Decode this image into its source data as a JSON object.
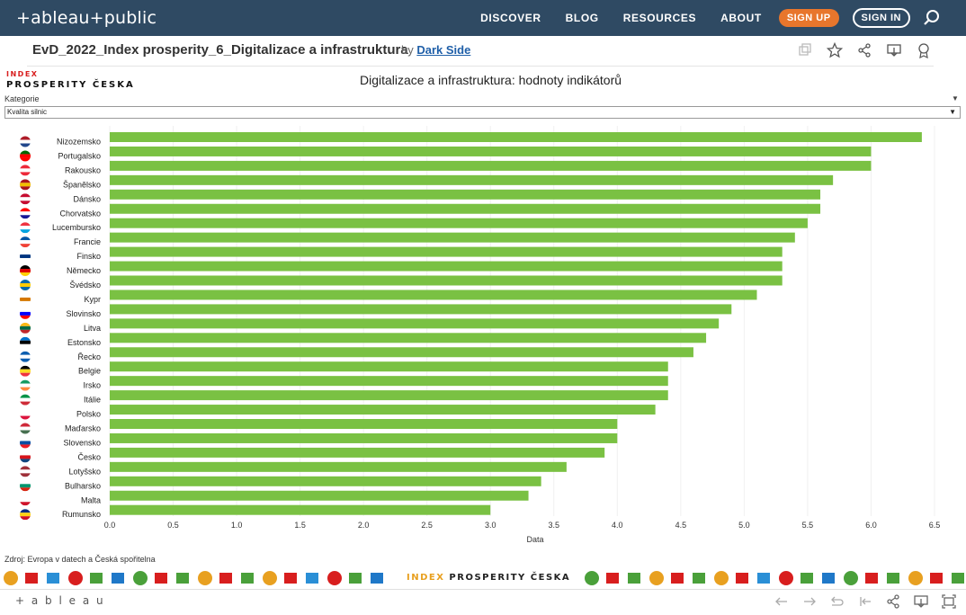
{
  "nav": {
    "logo": "+ableau+public",
    "links": [
      "DISCOVER",
      "BLOG",
      "RESOURCES",
      "ABOUT"
    ],
    "signup": "SIGN UP",
    "signin": "SIGN IN"
  },
  "viz": {
    "title": "EvD_2022_Index prosperity_6_Digitalizace a infrastruktura",
    "by": "by",
    "author": "Dark Side"
  },
  "brand": {
    "index": "INDEX",
    "main": "PROSPERITY ČESKA"
  },
  "dashboard": {
    "title": "Digitalizace a infrastruktura: hodnoty indikátorů",
    "filter_label": "Kategorie",
    "filter_value": "Kvalita silnic",
    "source": "Zdroj: Evropa v datech a Česká spořitelna"
  },
  "colors": {
    "bar": "#7ac143",
    "nav": "#2f4a63",
    "signup": "#e8762c",
    "link": "#1f5fa8"
  },
  "chart_data": {
    "type": "bar",
    "orientation": "horizontal",
    "categories": [
      "Nizozemsko",
      "Portugalsko",
      "Rakousko",
      "Španělsko",
      "Dánsko",
      "Chorvatsko",
      "Lucembursko",
      "Francie",
      "Finsko",
      "Německo",
      "Švédsko",
      "Kypr",
      "Slovinsko",
      "Litva",
      "Estonsko",
      "Řecko",
      "Belgie",
      "Irsko",
      "Itálie",
      "Polsko",
      "Maďarsko",
      "Slovensko",
      "Česko",
      "Lotyšsko",
      "Bulharsko",
      "Malta",
      "Rumunsko"
    ],
    "values": [
      6.4,
      6.0,
      6.0,
      5.7,
      5.6,
      5.6,
      5.5,
      5.4,
      5.3,
      5.3,
      5.3,
      5.1,
      4.9,
      4.8,
      4.7,
      4.6,
      4.4,
      4.4,
      4.4,
      4.3,
      4.0,
      4.0,
      3.9,
      3.6,
      3.4,
      3.3,
      3.0
    ],
    "xlabel": "Data",
    "ylabel": "",
    "xlim": [
      0,
      6.5
    ],
    "xticks": [
      "0.0",
      "0.5",
      "1.0",
      "1.5",
      "2.0",
      "2.5",
      "3.0",
      "3.5",
      "4.0",
      "4.5",
      "5.0",
      "5.5",
      "6.0",
      "6.5"
    ],
    "grid": true
  },
  "bottombar": {
    "logo": "+ a b l e a u"
  }
}
